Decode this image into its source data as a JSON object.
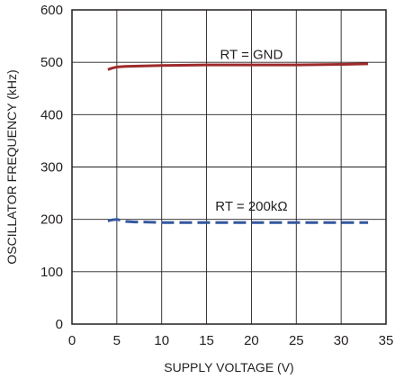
{
  "chart_data": {
    "type": "line",
    "xlabel": "SUPPLY VOLTAGE (V)",
    "ylabel": "OSCILLATOR FREQUENCY (kHz)",
    "xlim": [
      0,
      35
    ],
    "ylim": [
      0,
      600
    ],
    "xticks": [
      0,
      5,
      10,
      15,
      20,
      25,
      30,
      35
    ],
    "yticks": [
      0,
      100,
      200,
      300,
      400,
      500,
      600
    ],
    "grid": true,
    "series": [
      {
        "name": "RT = GND",
        "color": "#9e2a2b",
        "style": "solid",
        "x": [
          4,
          4.5,
          5,
          6,
          8,
          10,
          15,
          20,
          25,
          30,
          33
        ],
        "y": [
          486,
          489,
          491,
          492,
          493,
          494,
          495,
          495,
          495,
          496,
          497
        ]
      },
      {
        "name": "RT = 200kΩ",
        "color": "#34579e",
        "style": "dashed",
        "x": [
          4,
          4.5,
          5,
          5.5,
          6,
          7,
          8,
          10,
          15,
          20,
          25,
          30,
          33
        ],
        "y": [
          197,
          199,
          200,
          198,
          196,
          195,
          195,
          194,
          194,
          194,
          194,
          194,
          194
        ]
      }
    ],
    "annotations": [
      {
        "text": "RT = GND",
        "x": 20,
        "y": 515
      },
      {
        "text": "RT = 200kΩ",
        "x": 20,
        "y": 225
      }
    ]
  }
}
